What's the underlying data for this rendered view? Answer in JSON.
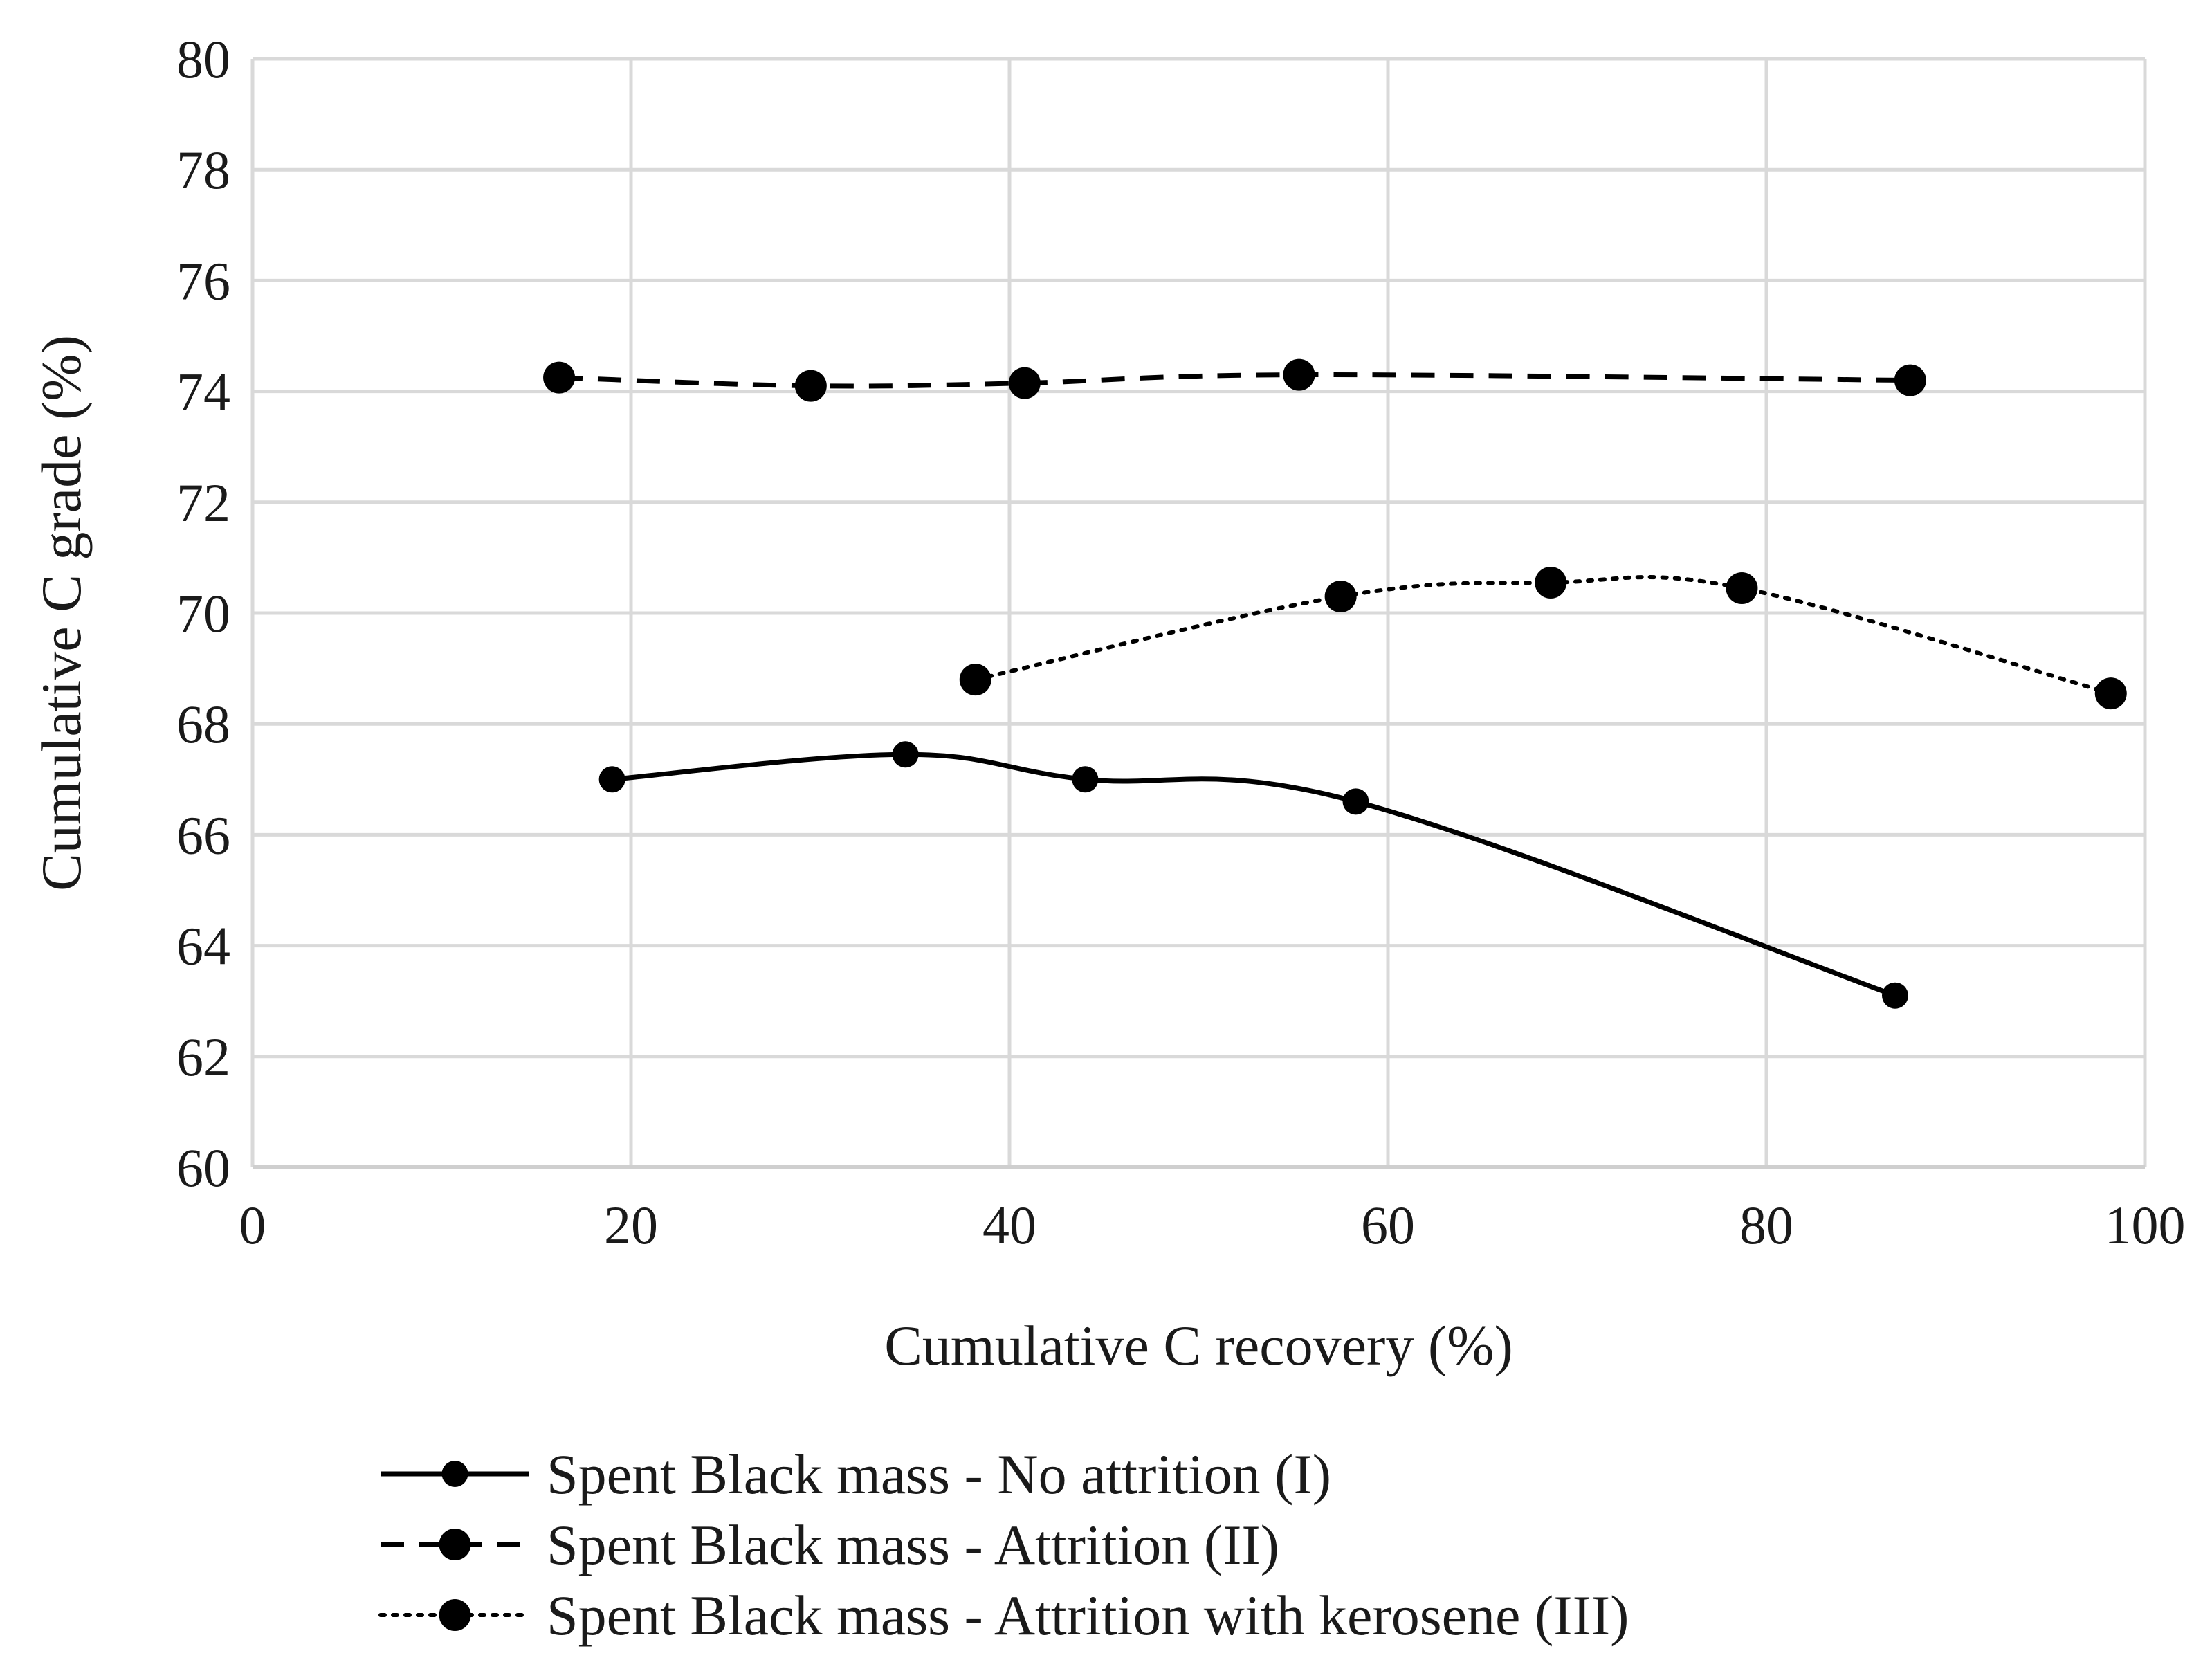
{
  "chart_data": {
    "type": "line",
    "title": "",
    "xlabel": "Cumulative C recovery (%)",
    "ylabel": "Cumulative C grade (%)",
    "xlim": [
      0,
      100
    ],
    "ylim": [
      60,
      80
    ],
    "x_ticks": [
      0,
      20,
      40,
      60,
      80,
      100
    ],
    "y_ticks": [
      60,
      62,
      64,
      66,
      68,
      70,
      72,
      74,
      76,
      78,
      80
    ],
    "x_tick_labels": [
      "0",
      "20",
      "40",
      "60",
      "80",
      "100"
    ],
    "y_tick_labels": [
      "60",
      "62",
      "64",
      "66",
      "68",
      "70",
      "72",
      "74",
      "76",
      "78",
      "80"
    ],
    "grid": true,
    "legend_position": "bottom",
    "series": [
      {
        "name": "Spent Black mass - No attrition (I)",
        "line_style": "solid",
        "marker": "circle-small",
        "points": [
          {
            "x": 19,
            "y": 67.0
          },
          {
            "x": 34.5,
            "y": 67.45
          },
          {
            "x": 44,
            "y": 67.0
          },
          {
            "x": 58.3,
            "y": 66.6
          },
          {
            "x": 86.8,
            "y": 63.1
          }
        ]
      },
      {
        "name": "Spent Black mass - Attrition (II)",
        "line_style": "dashed",
        "marker": "circle",
        "points": [
          {
            "x": 16.2,
            "y": 74.25
          },
          {
            "x": 29.5,
            "y": 74.1
          },
          {
            "x": 40.8,
            "y": 74.15
          },
          {
            "x": 55.3,
            "y": 74.3
          },
          {
            "x": 87.6,
            "y": 74.2
          }
        ]
      },
      {
        "name": "Spent Black mass - Attrition with kerosene (III)",
        "line_style": "dotted",
        "marker": "circle",
        "points": [
          {
            "x": 38.2,
            "y": 68.8
          },
          {
            "x": 57.5,
            "y": 70.3
          },
          {
            "x": 68.6,
            "y": 70.55
          },
          {
            "x": 78.7,
            "y": 70.45
          },
          {
            "x": 98.2,
            "y": 68.55
          }
        ]
      }
    ]
  }
}
